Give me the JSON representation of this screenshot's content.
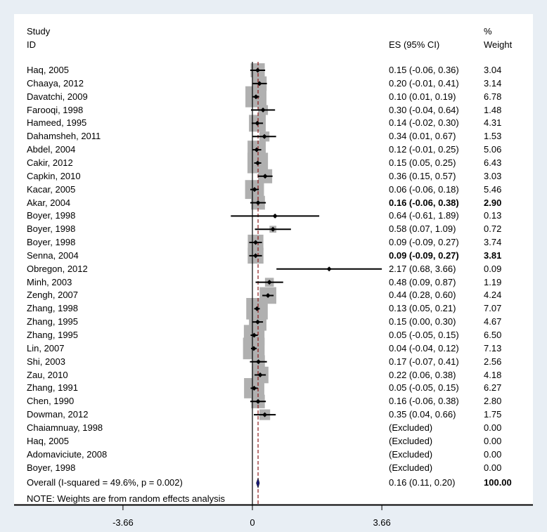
{
  "header": {
    "study_label": "Study",
    "id_label": "ID",
    "es_label": "ES (95% CI)",
    "pct_label": "%",
    "weight_label": "Weight"
  },
  "note": "NOTE: Weights are from random effects analysis",
  "chart_data": {
    "type": "forest",
    "xlim": [
      -5.2,
      5.2
    ],
    "x_ticks": [
      "-3.66",
      "0",
      "3.66"
    ],
    "x_tick_values": [
      -3.66,
      0,
      3.66
    ],
    "overall_es": 0.16,
    "rows": [
      {
        "study": "Haq, 2005",
        "es": 0.15,
        "lo": -0.06,
        "hi": 0.36,
        "ci": "0.15 (-0.06, 0.36)",
        "weight": "3.04",
        "w": 3.04,
        "bold": false
      },
      {
        "study": "Chaaya, 2012",
        "es": 0.2,
        "lo": -0.01,
        "hi": 0.41,
        "ci": "0.20 (-0.01, 0.41)",
        "weight": "3.14",
        "w": 3.14,
        "bold": false
      },
      {
        "study": "Davatchi, 2009",
        "es": 0.1,
        "lo": 0.01,
        "hi": 0.19,
        "ci": "0.10 (0.01, 0.19)",
        "weight": "6.78",
        "w": 6.78,
        "bold": false
      },
      {
        "study": "Farooqi, 1998",
        "es": 0.3,
        "lo": -0.04,
        "hi": 0.64,
        "ci": "0.30 (-0.04, 0.64)",
        "weight": "1.48",
        "w": 1.48,
        "bold": false
      },
      {
        "study": "Hameed, 1995",
        "es": 0.14,
        "lo": -0.02,
        "hi": 0.3,
        "ci": "0.14 (-0.02, 0.30)",
        "weight": "4.31",
        "w": 4.31,
        "bold": false
      },
      {
        "study": "Dahamsheh, 2011",
        "es": 0.34,
        "lo": 0.01,
        "hi": 0.67,
        "ci": "0.34 (0.01, 0.67)",
        "weight": "1.53",
        "w": 1.53,
        "bold": false
      },
      {
        "study": "Abdel, 2004",
        "es": 0.12,
        "lo": -0.01,
        "hi": 0.25,
        "ci": "0.12 (-0.01, 0.25)",
        "weight": "5.06",
        "w": 5.06,
        "bold": false
      },
      {
        "study": "Cakir, 2012",
        "es": 0.15,
        "lo": 0.05,
        "hi": 0.25,
        "ci": "0.15 (0.05, 0.25)",
        "weight": "6.43",
        "w": 6.43,
        "bold": false
      },
      {
        "study": "Capkin, 2010",
        "es": 0.36,
        "lo": 0.15,
        "hi": 0.57,
        "ci": "0.36 (0.15, 0.57)",
        "weight": "3.03",
        "w": 3.03,
        "bold": false
      },
      {
        "study": "Kacar, 2005",
        "es": 0.06,
        "lo": -0.06,
        "hi": 0.18,
        "ci": "0.06 (-0.06, 0.18)",
        "weight": "5.46",
        "w": 5.46,
        "bold": false
      },
      {
        "study": "Akar, 2004",
        "es": 0.16,
        "lo": -0.06,
        "hi": 0.38,
        "ci": "0.16 (-0.06, 0.38)",
        "weight": "2.90",
        "w": 2.9,
        "bold": true
      },
      {
        "study": "Boyer, 1998",
        "es": 0.64,
        "lo": -0.61,
        "hi": 1.89,
        "ci": "0.64 (-0.61, 1.89)",
        "weight": "0.13",
        "w": 0.13,
        "bold": false
      },
      {
        "study": "Boyer, 1998",
        "es": 0.58,
        "lo": 0.07,
        "hi": 1.09,
        "ci": "0.58 (0.07, 1.09)",
        "weight": "0.72",
        "w": 0.72,
        "bold": false
      },
      {
        "study": "Boyer, 1998",
        "es": 0.09,
        "lo": -0.09,
        "hi": 0.27,
        "ci": "0.09 (-0.09, 0.27)",
        "weight": "3.74",
        "w": 3.74,
        "bold": false
      },
      {
        "study": "Senna, 2004",
        "es": 0.09,
        "lo": -0.09,
        "hi": 0.27,
        "ci": "0.09 (-0.09, 0.27)",
        "weight": "3.81",
        "w": 3.81,
        "bold": true
      },
      {
        "study": "Obregon, 2012",
        "es": 2.17,
        "lo": 0.68,
        "hi": 3.66,
        "ci": "2.17 (0.68, 3.66)",
        "weight": "0.09",
        "w": 0.09,
        "bold": false
      },
      {
        "study": "Minh, 2003",
        "es": 0.48,
        "lo": 0.09,
        "hi": 0.87,
        "ci": "0.48 (0.09, 0.87)",
        "weight": "1.19",
        "w": 1.19,
        "bold": false
      },
      {
        "study": "Zengh, 2007",
        "es": 0.44,
        "lo": 0.28,
        "hi": 0.6,
        "ci": "0.44 (0.28, 0.60)",
        "weight": "4.24",
        "w": 4.24,
        "bold": false
      },
      {
        "study": "Zhang, 1998",
        "es": 0.13,
        "lo": 0.05,
        "hi": 0.21,
        "ci": "0.13 (0.05, 0.21)",
        "weight": "7.07",
        "w": 7.07,
        "bold": false
      },
      {
        "study": "Zhang, 1995",
        "es": 0.15,
        "lo": 0.0,
        "hi": 0.3,
        "ci": "0.15 (0.00, 0.30)",
        "weight": "4.67",
        "w": 4.67,
        "bold": false
      },
      {
        "study": "Zhang, 1995",
        "es": 0.05,
        "lo": -0.05,
        "hi": 0.15,
        "ci": "0.05 (-0.05, 0.15)",
        "weight": "6.50",
        "w": 6.5,
        "bold": false
      },
      {
        "study": "Lin, 2007",
        "es": 0.04,
        "lo": -0.04,
        "hi": 0.12,
        "ci": "0.04 (-0.04, 0.12)",
        "weight": "7.13",
        "w": 7.13,
        "bold": false
      },
      {
        "study": "Shi, 2003",
        "es": 0.17,
        "lo": -0.07,
        "hi": 0.41,
        "ci": "0.17 (-0.07, 0.41)",
        "weight": "2.56",
        "w": 2.56,
        "bold": false
      },
      {
        "study": "Zau, 2010",
        "es": 0.22,
        "lo": 0.06,
        "hi": 0.38,
        "ci": "0.22 (0.06, 0.38)",
        "weight": "4.18",
        "w": 4.18,
        "bold": false
      },
      {
        "study": "Zhang, 1991",
        "es": 0.05,
        "lo": -0.05,
        "hi": 0.15,
        "ci": "0.05 (-0.05, 0.15)",
        "weight": "6.27",
        "w": 6.27,
        "bold": false
      },
      {
        "study": "Chen, 1990",
        "es": 0.16,
        "lo": -0.06,
        "hi": 0.38,
        "ci": "0.16 (-0.06, 0.38)",
        "weight": "2.80",
        "w": 2.8,
        "bold": false
      },
      {
        "study": "Dowman, 2012",
        "es": 0.35,
        "lo": 0.04,
        "hi": 0.66,
        "ci": "0.35 (0.04, 0.66)",
        "weight": "1.75",
        "w": 1.75,
        "bold": false
      },
      {
        "study": "Chaiamnuay, 1998",
        "es": null,
        "ci": "(Excluded)",
        "weight": "0.00",
        "w": 0,
        "bold": false
      },
      {
        "study": "Haq, 2005",
        "es": null,
        "ci": "(Excluded)",
        "weight": "0.00",
        "w": 0,
        "bold": false
      },
      {
        "study": "Adomaviciute, 2008",
        "es": null,
        "ci": "(Excluded)",
        "weight": "0.00",
        "w": 0,
        "bold": false
      },
      {
        "study": "Boyer, 1998",
        "es": null,
        "ci": "(Excluded)",
        "weight": "0.00",
        "w": 0,
        "bold": false
      }
    ],
    "overall": {
      "label": "Overall  (I-squared = 49.6%, p = 0.002)",
      "es": 0.16,
      "lo": 0.11,
      "hi": 0.2,
      "ci": "0.16 (0.11, 0.20)",
      "weight": "100.00"
    },
    "colors": {
      "box": "#b0b0b0",
      "line": "#000000",
      "diamond": "#1a1a7a",
      "ref": "#8b1a1a",
      "background": "#e8eef4"
    }
  }
}
